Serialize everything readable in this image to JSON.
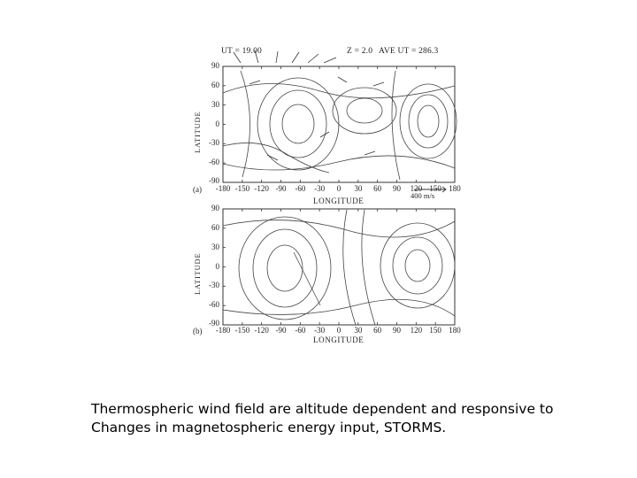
{
  "figure": {
    "panel_a": {
      "ut_label": "UT = 19.00",
      "z_label": "Z = 2.0",
      "ave_ut_label": "AVE UT = 286.3",
      "panel_label": "(a)",
      "ylabel": "LATITUDE",
      "xlabel": "LONGITUDE",
      "scale_label": "400 m/s",
      "yticks": [
        "90",
        "60",
        "30",
        "0",
        "-30",
        "-60",
        "-90"
      ],
      "xticks": [
        "-180",
        "-150",
        "-120",
        "-90",
        "-60",
        "-30",
        "0",
        "30",
        "60",
        "90",
        "120",
        "150",
        "180"
      ]
    },
    "panel_b": {
      "panel_label": "(b)",
      "ylabel": "LATITUDE",
      "xlabel": "LONGITUDE",
      "yticks": [
        "90",
        "60",
        "30",
        "0",
        "-30",
        "-60",
        "-90"
      ],
      "xticks": [
        "-180",
        "-150",
        "-120",
        "-90",
        "-60",
        "-30",
        "0",
        "30",
        "60",
        "90",
        "120",
        "150",
        "180"
      ]
    }
  },
  "caption": {
    "line1": "Thermospheric wind field are altitude dependent and responsive to",
    "line2": "Changes in magnetospheric energy input, STORMS."
  }
}
